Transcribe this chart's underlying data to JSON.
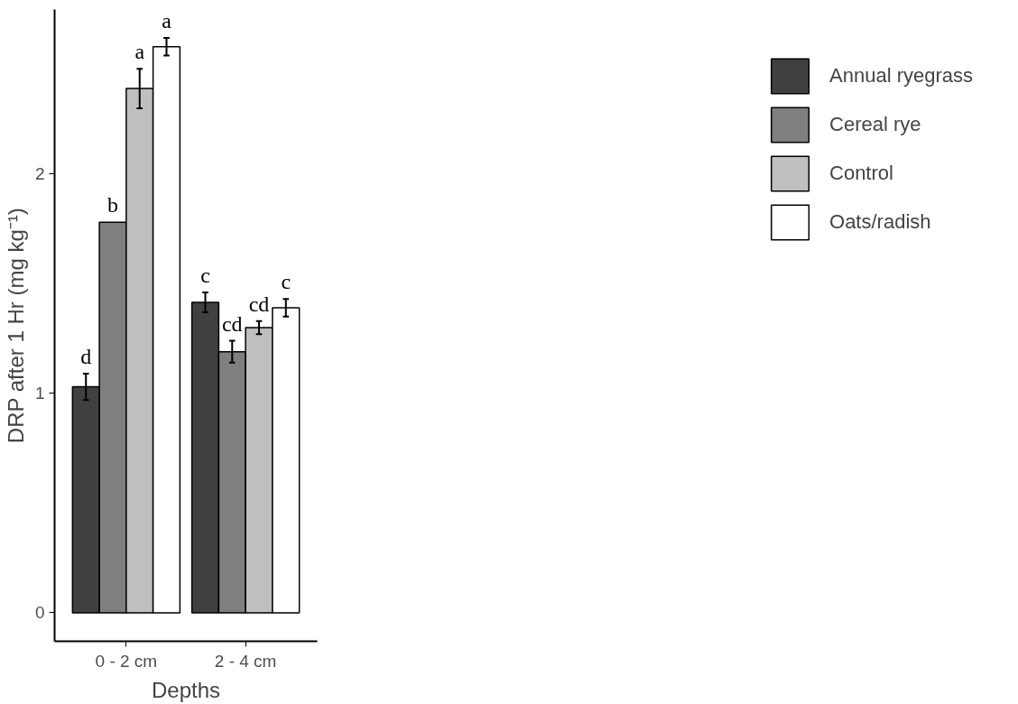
{
  "chart_data": {
    "type": "bar",
    "xlabel": "Depths",
    "ylabel": "DRP after 1 Hr (mg kg⁻¹)",
    "categories": [
      "0 - 2 cm",
      "2 - 4 cm"
    ],
    "series": [
      {
        "name": "Annual ryegrass",
        "color": "#404040",
        "values": [
          1.03,
          1.415
        ],
        "errors": [
          0.06,
          0.045
        ],
        "value_labels": [
          "d",
          "c"
        ]
      },
      {
        "name": "Cereal rye",
        "color": "#7f7f7f",
        "values": [
          1.78,
          1.19
        ],
        "errors": [
          null,
          0.05
        ],
        "value_labels": [
          "b",
          "cd"
        ]
      },
      {
        "name": "Control",
        "color": "#bfbfbf",
        "values": [
          2.39,
          1.3
        ],
        "errors": [
          0.09,
          0.03
        ],
        "value_labels": [
          "a",
          "cd"
        ]
      },
      {
        "name": "Oats/radish",
        "color": "#ffffff",
        "values": [
          2.58,
          1.39
        ],
        "errors": [
          0.04,
          0.04
        ],
        "value_labels": [
          "a",
          "c"
        ]
      }
    ],
    "ylim": [
      -0.13,
      2.75
    ],
    "yticks": [
      0,
      1,
      2
    ],
    "grid": false,
    "legend": "right"
  }
}
